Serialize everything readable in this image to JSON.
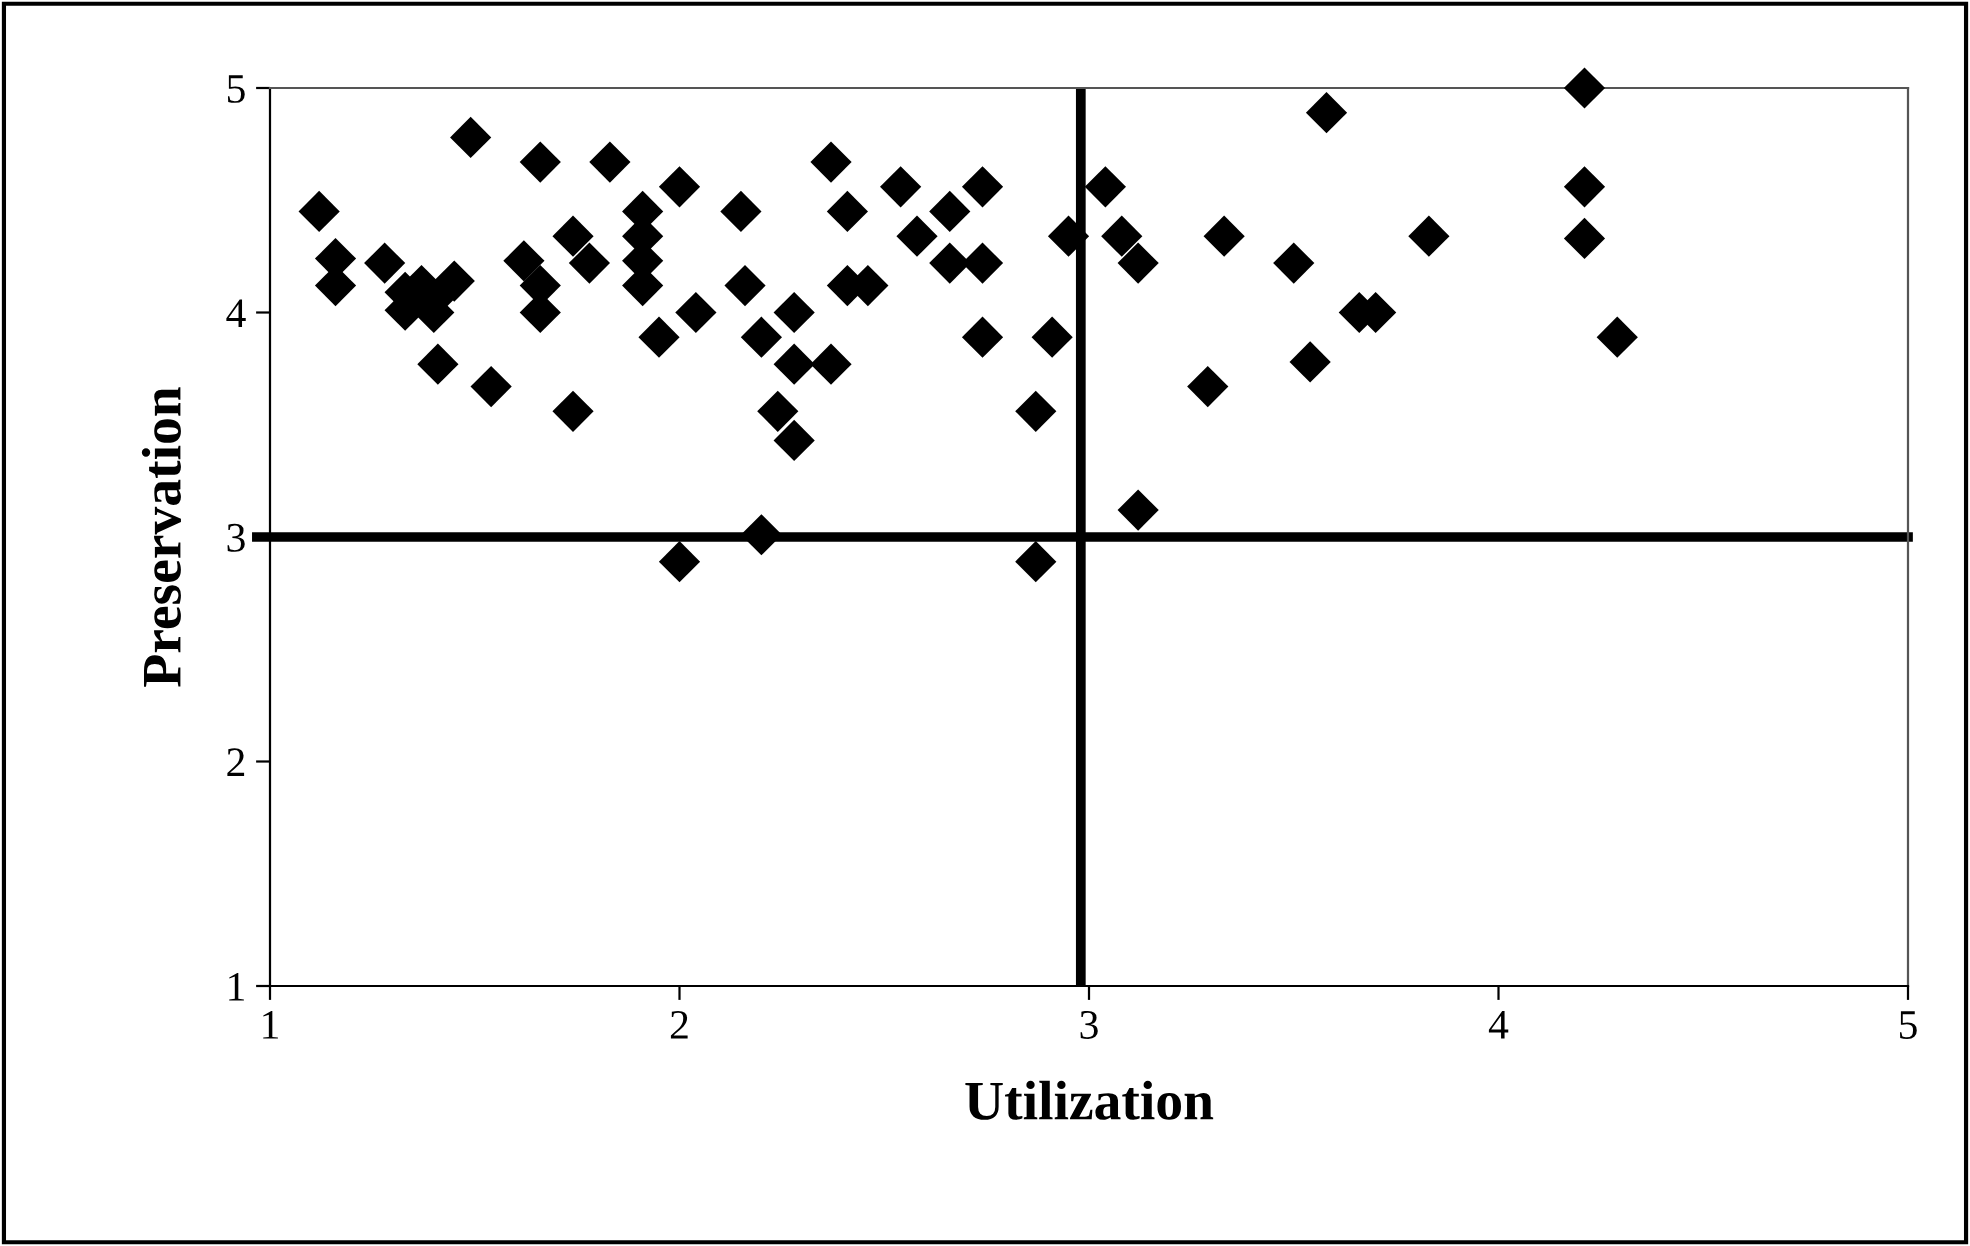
{
  "chart_data": {
    "type": "scatter",
    "xlabel": "Utilization",
    "ylabel": "Preservation",
    "xlim": [
      1,
      5
    ],
    "ylim": [
      1,
      5
    ],
    "xticks": [
      1,
      2,
      3,
      4,
      5
    ],
    "yticks": [
      1,
      2,
      3,
      4,
      5
    ],
    "grid": false,
    "marker": "diamond",
    "series": [
      {
        "color": "#000000",
        "x": [
          1.12,
          1.16,
          1.16,
          1.28,
          1.49,
          1.66,
          1.83,
          2.0,
          2.15,
          2.37,
          2.41,
          1.33,
          1.37,
          1.4,
          1.45,
          1.33,
          1.4,
          1.41,
          1.54,
          1.62,
          1.66,
          1.66,
          1.74,
          1.78,
          1.91,
          1.91,
          1.91,
          1.91,
          1.95,
          2.04,
          1.74,
          2.16,
          2.2,
          2.28,
          2.28,
          2.37,
          2.24,
          2.28,
          2.41,
          2.2,
          2.0,
          2.54,
          2.66,
          2.74,
          2.58,
          2.66,
          2.74,
          2.46,
          2.74,
          2.91,
          2.87,
          2.95,
          3.04,
          3.08,
          3.12,
          3.58,
          3.33,
          3.5,
          3.66,
          3.7,
          3.54,
          3.29,
          3.12,
          2.87,
          3.83,
          4.21,
          4.21,
          4.21,
          4.29
        ],
        "values": [
          4.45,
          4.24,
          4.12,
          4.22,
          4.78,
          4.67,
          4.67,
          4.56,
          4.45,
          4.67,
          4.45,
          4.09,
          4.12,
          4.06,
          4.14,
          4.01,
          4.0,
          3.77,
          3.67,
          4.23,
          4.12,
          4.0,
          4.34,
          4.22,
          4.45,
          4.34,
          4.23,
          4.12,
          3.89,
          4.0,
          3.56,
          4.12,
          3.89,
          4.0,
          3.77,
          3.77,
          3.56,
          3.43,
          4.12,
          3.01,
          2.89,
          4.56,
          4.45,
          4.56,
          4.34,
          4.22,
          4.22,
          4.12,
          3.89,
          3.89,
          3.56,
          4.34,
          4.56,
          4.34,
          4.22,
          4.89,
          4.34,
          4.22,
          4.0,
          4.0,
          3.78,
          3.67,
          3.12,
          2.89,
          4.34,
          5.0,
          4.56,
          4.33,
          3.89
        ]
      }
    ],
    "ref_lines": [
      {
        "axis": "x",
        "value": 2.98,
        "color": "#000000"
      },
      {
        "axis": "y",
        "value": 3,
        "color": "#000000"
      }
    ]
  }
}
